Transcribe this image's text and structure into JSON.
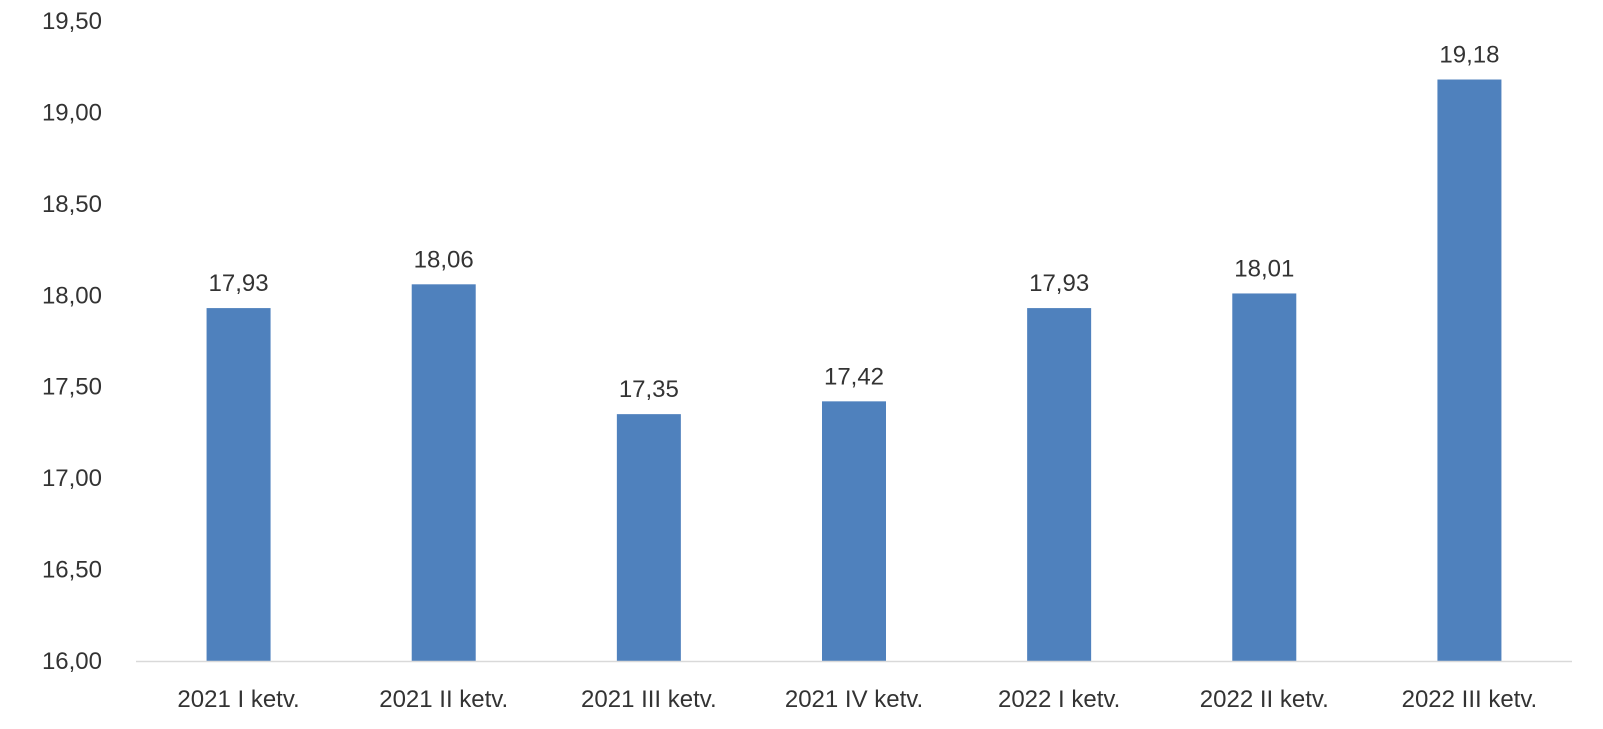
{
  "chart_data": {
    "type": "bar",
    "title": "",
    "xlabel": "",
    "ylabel": "",
    "categories": [
      "2021 I ketv.",
      "2021 II ketv.",
      "2021 III ketv.",
      "2021 IV ketv.",
      "2022 I ketv.",
      "2022 II ketv.",
      "2022 III ketv."
    ],
    "values": [
      17.93,
      18.06,
      17.35,
      17.42,
      17.93,
      18.01,
      19.18
    ],
    "data_labels": [
      "17,93",
      "18,06",
      "17,35",
      "17,42",
      "17,93",
      "18,01",
      "19,18"
    ],
    "ylim": [
      16.0,
      19.5
    ],
    "y_ticks": [
      "16,00",
      "16,50",
      "17,00",
      "17,50",
      "18,00",
      "18,50",
      "19,00",
      "19,50"
    ],
    "y_tick_values": [
      16.0,
      16.5,
      17.0,
      17.5,
      18.0,
      18.5,
      19.0,
      19.5
    ],
    "grid": false,
    "legend": "none",
    "bar_color": "#4f81bd",
    "text_color": "#333333",
    "axis_color": "#d9d9d9"
  }
}
